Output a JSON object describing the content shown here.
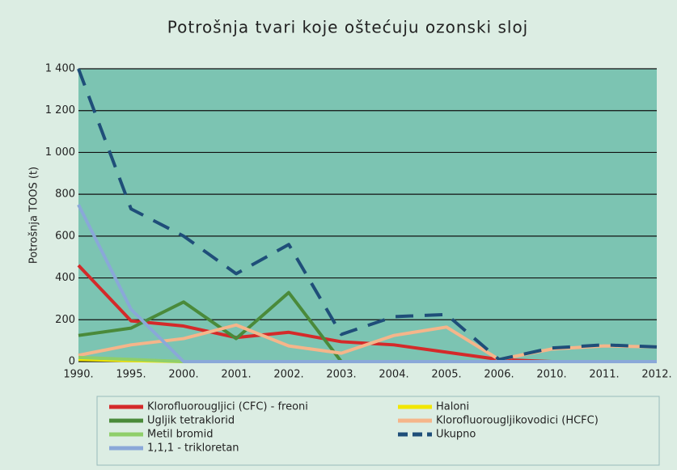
{
  "chart_data": {
    "type": "line",
    "title": "Potrošnja tvari koje oštećuju ozonski sloj",
    "y_label": "Potrošnja TOOS (t)",
    "categories": [
      "1990.",
      "1995.",
      "2000.",
      "2001.",
      "2002.",
      "2003.",
      "2004.",
      "2005.",
      "2006.",
      "2010.",
      "2011.",
      "2012."
    ],
    "ylim": [
      0,
      1400
    ],
    "yticks": [
      0,
      200,
      400,
      600,
      800,
      {
        "value": 1000,
        "label": "1 000"
      },
      {
        "value": 1200,
        "label": "1 200"
      },
      {
        "value": 1400,
        "label": "1 400"
      }
    ],
    "grid": true,
    "series": [
      {
        "name": "Klorofluorougljici (CFC) - freoni",
        "color": "#d42a2a",
        "values": [
          460,
          195,
          170,
          115,
          140,
          95,
          80,
          45,
          10,
          0,
          0,
          0
        ]
      },
      {
        "name": "Haloni",
        "color": "#f2e600",
        "values": [
          10,
          5,
          0,
          0,
          0,
          0,
          0,
          0,
          0,
          0,
          0,
          0
        ]
      },
      {
        "name": "Ugljik tetraklorid",
        "color": "#4a8a3a",
        "values": [
          125,
          160,
          285,
          110,
          330,
          0,
          0,
          0,
          0,
          0,
          0,
          0
        ]
      },
      {
        "name": "Klorofluorougljikovodici (HCFC)",
        "color": "#f5b58a",
        "values": [
          30,
          80,
          110,
          175,
          75,
          40,
          125,
          165,
          10,
          60,
          75,
          70
        ]
      },
      {
        "name": "Metil bromid",
        "color": "#8fcf6a",
        "values": [
          20,
          10,
          0,
          0,
          0,
          0,
          0,
          0,
          0,
          0,
          0,
          0
        ]
      },
      {
        "name": "Ukupno",
        "color": "#1f4e79",
        "dashed": true,
        "values": [
          1400,
          730,
          600,
          420,
          560,
          130,
          215,
          225,
          10,
          65,
          80,
          70
        ]
      },
      {
        "name": "1,1,1 - trikloretan",
        "color": "#8aa8d8",
        "values": [
          750,
          250,
          0,
          0,
          0,
          0,
          0,
          0,
          0,
          0,
          0,
          0
        ]
      }
    ]
  }
}
